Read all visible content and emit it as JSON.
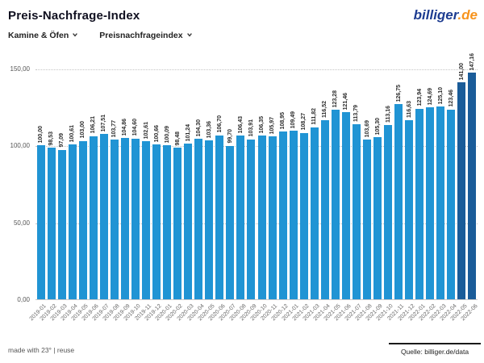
{
  "header": {
    "title": "Preis-Nachfrage-Index",
    "logo": {
      "part1": "billiger",
      "part2": ".de"
    }
  },
  "filters": {
    "category": {
      "label": "Kamine & Öfen",
      "icon": "chevron-down-icon"
    },
    "metric": {
      "label": "Preisnachfrageindex",
      "icon": "chevron-down-icon"
    }
  },
  "chart_data": {
    "type": "bar",
    "title": "Preis-Nachfrage-Index",
    "xlabel": "",
    "ylabel": "",
    "ylim": [
      0,
      150
    ],
    "grid": "horizontal-dotted",
    "legend": "none",
    "bar_color": "#2094d4",
    "highlight_color": "#1a5c99",
    "highlight_last": 2,
    "yticks": [
      {
        "value": 150,
        "label": "150,00"
      },
      {
        "value": 100,
        "label": "100,00"
      },
      {
        "value": 50,
        "label": "50,00"
      },
      {
        "value": 0,
        "label": "0,00"
      }
    ],
    "categories": [
      "2019-01",
      "2019-02",
      "2019-03",
      "2019-04",
      "2019-05",
      "2019-06",
      "2019-07",
      "2019-08",
      "2019-09",
      "2019-10",
      "2019-11",
      "2019-12",
      "2020-01",
      "2020-02",
      "2020-03",
      "2020-04",
      "2020-05",
      "2020-06",
      "2020-07",
      "2020-08",
      "2020-09",
      "2020-10",
      "2020-11",
      "2020-12",
      "2021-01",
      "2021-02",
      "2021-03",
      "2021-04",
      "2021-05",
      "2021-06",
      "2021-07",
      "2021-08",
      "2021-09",
      "2021-10",
      "2021-11",
      "2021-12",
      "2022-01",
      "2022-02",
      "2022-03",
      "2022-04",
      "2022-05",
      "2022-06"
    ],
    "values": [
      100.0,
      98.53,
      97.09,
      100.61,
      103.0,
      106.21,
      107.51,
      103.77,
      104.86,
      104.6,
      102.61,
      100.66,
      100.09,
      98.48,
      101.24,
      104.3,
      103.36,
      106.7,
      99.7,
      106.43,
      103.91,
      106.35,
      105.97,
      108.95,
      109.49,
      108.27,
      111.82,
      116.52,
      123.28,
      121.46,
      113.79,
      103.69,
      105.3,
      113.16,
      126.75,
      116.63,
      123.94,
      124.69,
      125.1,
      123.46,
      141.0,
      147.16
    ],
    "value_labels": [
      "100,00",
      "98,53",
      "97,09",
      "100,61",
      "103,00",
      "106,21",
      "107,51",
      "103,77",
      "104,86",
      "104,60",
      "102,61",
      "100,66",
      "100,09",
      "98,48",
      "101,24",
      "104,30",
      "103,36",
      "106,70",
      "99,70",
      "106,43",
      "103,91",
      "106,35",
      "105,97",
      "108,95",
      "109,49",
      "108,27",
      "111,82",
      "116,52",
      "123,28",
      "121,46",
      "113,79",
      "103,69",
      "105,30",
      "113,16",
      "126,75",
      "116,63",
      "123,94",
      "124,69",
      "125,10",
      "123,46",
      "141,00",
      "147,16"
    ]
  },
  "footer": {
    "left": "made with 23° | reuse",
    "right": "Quelle: billiger.de/data"
  },
  "colors": {
    "bar_blue": "#2094d4",
    "bar_dark_blue": "#1a5c99",
    "logo_blue": "#1e3d91",
    "logo_orange": "#f7941e"
  }
}
